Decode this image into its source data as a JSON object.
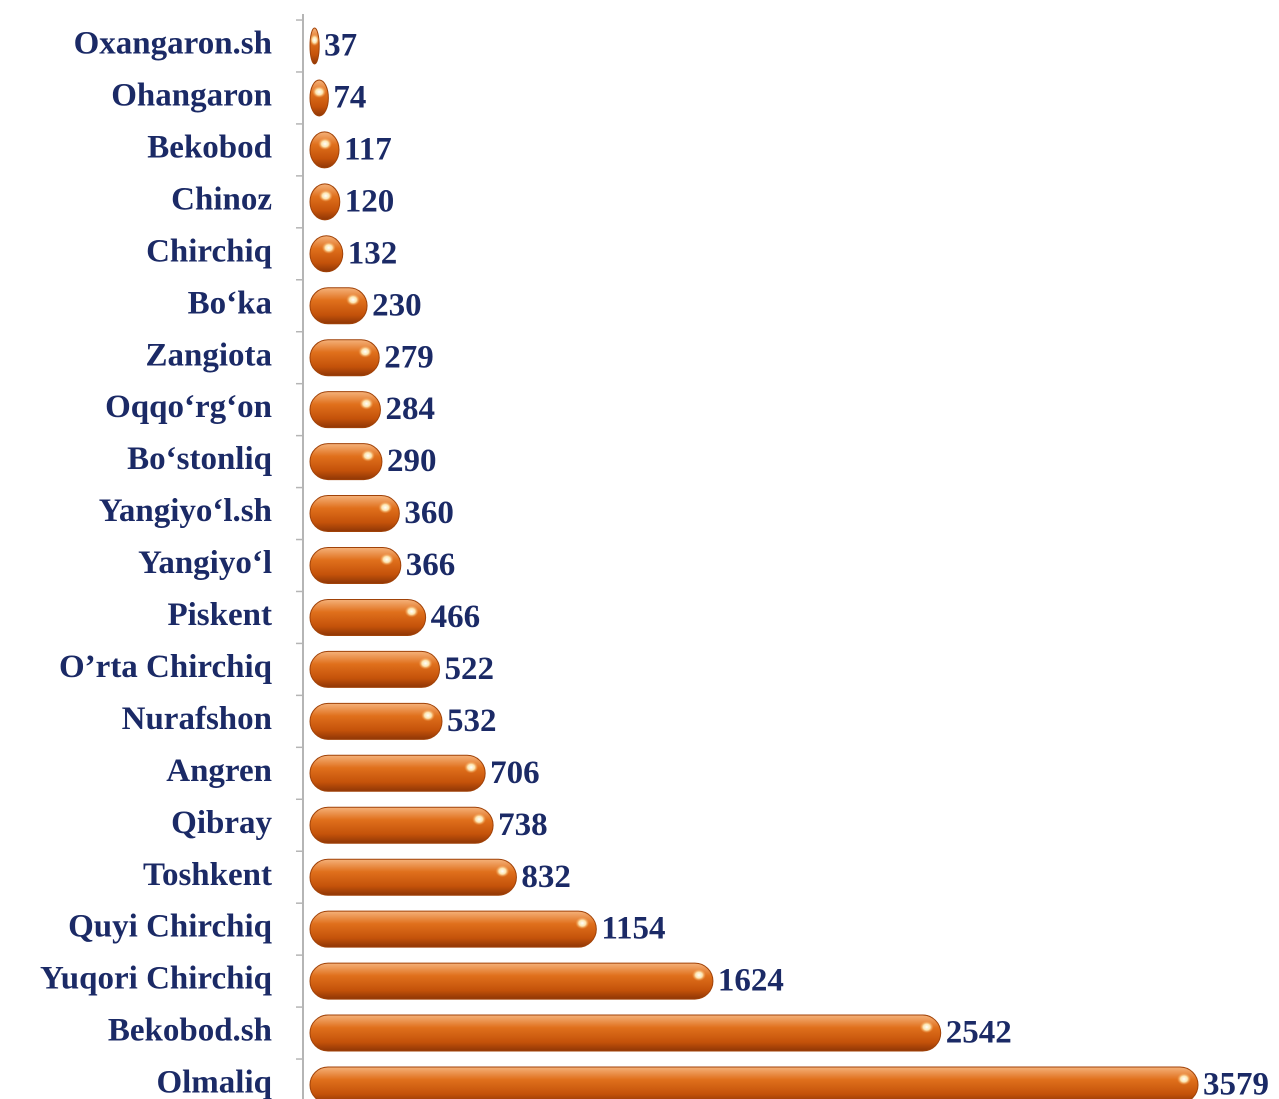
{
  "chart_data": {
    "type": "bar",
    "orientation": "horizontal",
    "color": "#d9640f",
    "categories": [
      "Oxangaron.sh",
      "Ohangaron",
      "Bekobod",
      "Chinoz",
      "Chirchiq",
      "Bo‘ka",
      "Zangiota",
      "Oqqo‘rg‘on",
      "Bo‘stonliq",
      "Yangiyo‘l.sh",
      "Yangiyo‘l",
      "Piskent",
      "O’rta Chirchiq",
      "Nurafshon",
      "Angren",
      "Qibray",
      "Toshkent",
      "Quyi Chirchiq",
      "Yuqori Chirchiq",
      "Bekobod.sh",
      "Olmaliq"
    ],
    "values": [
      37,
      74,
      117,
      120,
      132,
      230,
      279,
      284,
      290,
      360,
      366,
      466,
      522,
      532,
      706,
      738,
      832,
      1154,
      1624,
      2542,
      3579
    ]
  }
}
